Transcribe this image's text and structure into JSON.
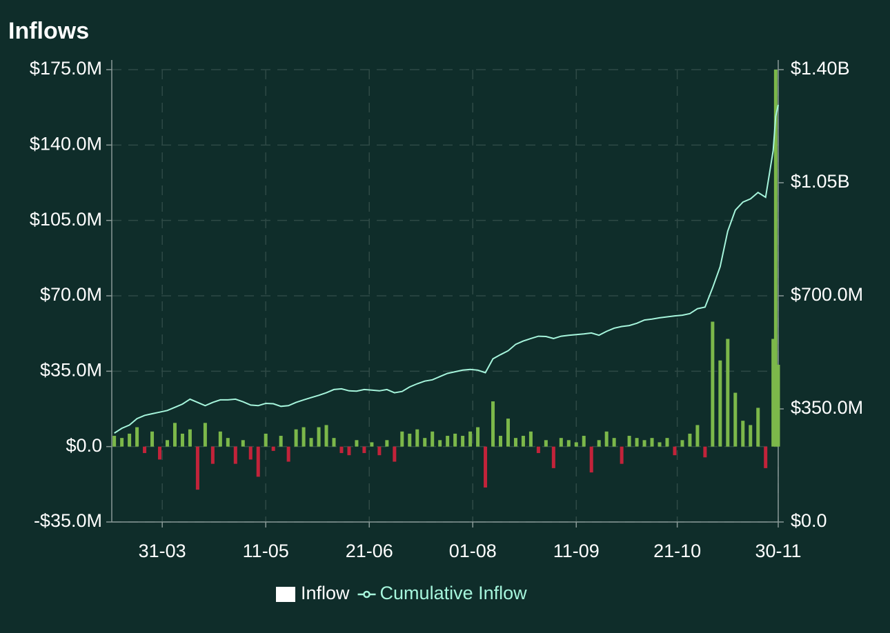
{
  "chart_data": {
    "type": "bar_line",
    "title": "Inflows",
    "x": [
      "12-03",
      "15-03",
      "18-03",
      "21-03",
      "24-03",
      "27-03",
      "30-03",
      "02-04",
      "05-04",
      "08-04",
      "11-04",
      "14-04",
      "17-04",
      "20-04",
      "23-04",
      "26-04",
      "29-04",
      "02-05",
      "05-05",
      "08-05",
      "11-05",
      "14-05",
      "17-05",
      "20-05",
      "23-05",
      "26-05",
      "29-05",
      "01-06",
      "04-06",
      "07-06",
      "10-06",
      "13-06",
      "16-06",
      "19-06",
      "22-06",
      "25-06",
      "28-06",
      "01-07",
      "04-07",
      "07-07",
      "10-07",
      "13-07",
      "16-07",
      "19-07",
      "22-07",
      "25-07",
      "28-07",
      "31-07",
      "03-08",
      "06-08",
      "09-08",
      "12-08",
      "15-08",
      "18-08",
      "21-08",
      "24-08",
      "27-08",
      "30-08",
      "02-09",
      "05-09",
      "08-09",
      "11-09",
      "14-09",
      "17-09",
      "20-09",
      "23-09",
      "26-09",
      "29-09",
      "02-10",
      "05-10",
      "08-10",
      "11-10",
      "14-10",
      "17-10",
      "20-10",
      "23-10",
      "26-10",
      "29-10",
      "01-11",
      "04-11",
      "07-11",
      "10-11",
      "13-11",
      "16-11",
      "19-11",
      "22-11",
      "25-11",
      "28-11",
      "29-11",
      "30-11"
    ],
    "series": [
      {
        "name": "Inflow",
        "color": "#ffffff",
        "positive_color": "#7cb84a",
        "negative_color": "#c2233a",
        "values": [
          5,
          4,
          6,
          9,
          -3,
          7,
          -6,
          3,
          11,
          6,
          8,
          -20,
          11,
          -8,
          7,
          4,
          -8,
          3,
          -6,
          -14,
          6,
          -2,
          5,
          -7,
          8,
          9,
          4,
          9,
          10,
          4,
          -3,
          -4,
          3,
          -3,
          2,
          -4,
          3,
          -7,
          7,
          6,
          8,
          4,
          7,
          3,
          5,
          6,
          5,
          7,
          9,
          -19,
          21,
          5,
          13,
          4,
          5,
          7,
          -3,
          3,
          -10,
          4,
          3,
          2,
          5,
          -12,
          3,
          7,
          4,
          -8,
          5,
          4,
          3,
          4,
          2,
          4,
          -4,
          3,
          6,
          10,
          -5,
          58,
          40,
          50,
          25,
          12,
          10,
          18,
          -10,
          50,
          175,
          38
        ]
      },
      {
        "name": "Cumulative Inflow",
        "color": "#a6f5dc",
        "axis": "y2",
        "values": [
          275,
          290,
          300,
          320,
          330,
          335,
          340,
          345,
          355,
          365,
          380,
          370,
          360,
          370,
          378,
          378,
          380,
          372,
          362,
          360,
          367,
          366,
          358,
          360,
          370,
          378,
          385,
          392,
          400,
          410,
          412,
          406,
          405,
          410,
          408,
          406,
          410,
          400,
          404,
          418,
          428,
          436,
          440,
          450,
          460,
          465,
          470,
          472,
          470,
          462,
          505,
          518,
          530,
          550,
          560,
          568,
          575,
          574,
          568,
          575,
          578,
          580,
          582,
          585,
          578,
          590,
          600,
          605,
          608,
          615,
          625,
          628,
          632,
          635,
          638,
          640,
          645,
          660,
          665,
          725,
          790,
          900,
          965,
          990,
          1000,
          1020,
          1005,
          1150,
          1255,
          1291
        ]
      }
    ],
    "xlim": [
      "11-03",
      "30-11"
    ],
    "xticks": [
      "31-03",
      "11-05",
      "21-06",
      "01-08",
      "11-09",
      "21-10",
      "30-11"
    ],
    "ylim": [
      -35,
      175
    ],
    "yticks": [
      {
        "value": -35,
        "label": "-$35.0M"
      },
      {
        "value": 0,
        "label": "$0.0"
      },
      {
        "value": 35,
        "label": "$35.0M"
      },
      {
        "value": 70,
        "label": "$70.0M"
      },
      {
        "value": 105,
        "label": "$105.0M"
      },
      {
        "value": 140,
        "label": "$140.0M"
      },
      {
        "value": 175,
        "label": "$175.0M"
      }
    ],
    "y2lim": [
      0,
      1400
    ],
    "y2ticks": [
      {
        "value": 0,
        "label": "$0.0"
      },
      {
        "value": 350,
        "label": "$350.0M"
      },
      {
        "value": 700,
        "label": "$700.0M"
      },
      {
        "value": 1050,
        "label": "$1.05B"
      },
      {
        "value": 1400,
        "label": "$1.40B"
      }
    ],
    "grid": true,
    "legend": "bottom"
  }
}
